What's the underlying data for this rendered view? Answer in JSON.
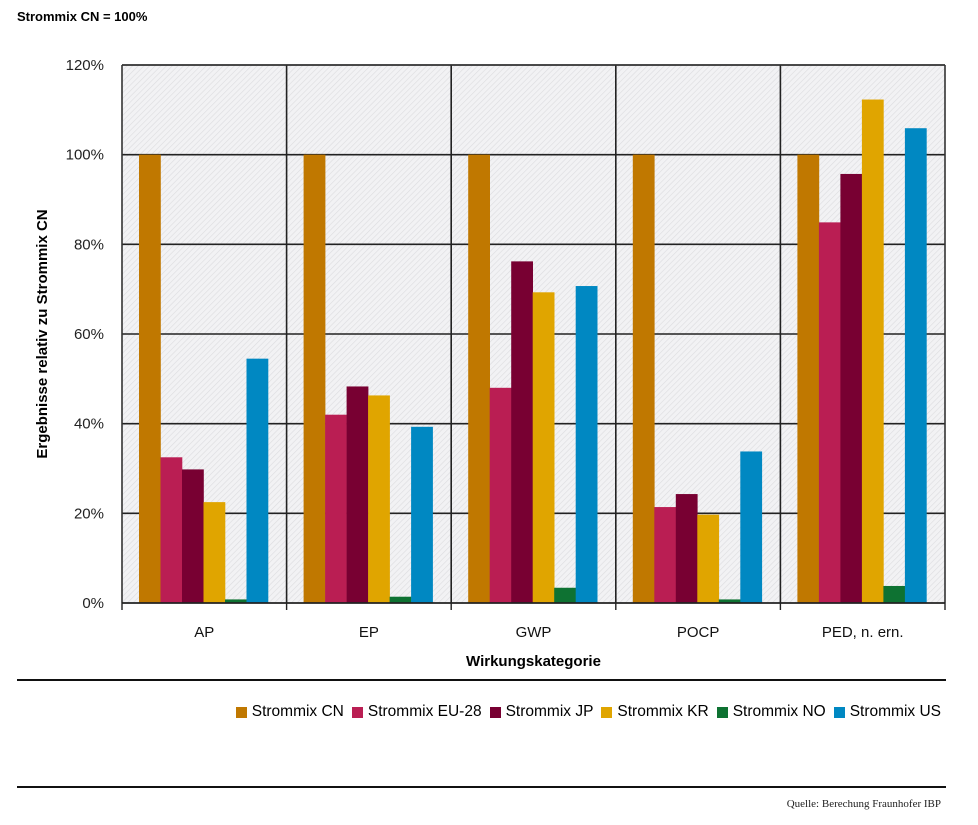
{
  "header": {
    "subtitle": "Strommix CN = 100%"
  },
  "chart_data": {
    "type": "bar",
    "title": "Strommix CN = 100%",
    "xlabel": "Wirkungskategorie",
    "ylabel": "Ergebnisse relativ zu Strommix CN",
    "ylim": [
      0,
      120
    ],
    "yticks": [
      0,
      20,
      40,
      60,
      80,
      100,
      120
    ],
    "ytick_labels": [
      "0%",
      "20%",
      "40%",
      "60%",
      "80%",
      "100%",
      "120%"
    ],
    "grid": true,
    "legend_position": "bottom-right",
    "categories": [
      "AP",
      "EP",
      "GWP",
      "POCP",
      "PED, n. ern."
    ],
    "series": [
      {
        "name": "Strommix CN",
        "color": "#C07800",
        "values": [
          100,
          100,
          100,
          100,
          100
        ]
      },
      {
        "name": "Strommix EU-28",
        "color": "#BA1E53",
        "values": [
          32.5,
          42.0,
          48.0,
          21.4,
          84.9
        ]
      },
      {
        "name": "Strommix JP",
        "color": "#780032",
        "values": [
          29.8,
          48.3,
          76.2,
          24.3,
          95.7
        ]
      },
      {
        "name": "Strommix KR",
        "color": "#E0A500",
        "values": [
          22.5,
          46.3,
          69.3,
          19.7,
          112.3
        ]
      },
      {
        "name": "Strommix NO",
        "color": "#0E7232",
        "values": [
          0.8,
          1.4,
          3.4,
          0.8,
          3.8
        ]
      },
      {
        "name": "Strommix US",
        "color": "#0088C2",
        "values": [
          54.5,
          39.3,
          70.7,
          33.8,
          105.9
        ]
      }
    ]
  },
  "footer": {
    "source": "Quelle:  Berechung Fraunhofer  IBP"
  }
}
